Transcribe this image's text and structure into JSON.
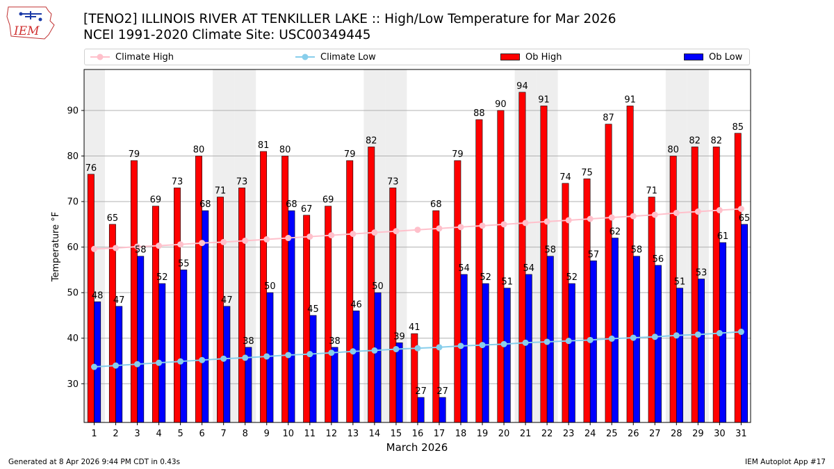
{
  "header": {
    "title_line1": "[TENO2] ILLINOIS RIVER  AT TENKILLER LAKE :: High/Low Temperature for Mar 2026",
    "title_line2": "NCEI 1991-2020 Climate Site: USC00349445"
  },
  "logo": {
    "text": "IEM"
  },
  "footer": {
    "left": "Generated at 8 Apr 2026 9:44 PM CDT in 0.43s",
    "right": "IEM Autoplot App #17"
  },
  "colors": {
    "ob_high": "#ff0000",
    "ob_low": "#0000ff",
    "climate_high": "#ffc0cb",
    "climate_low": "#87ceeb",
    "weekend_shade": "#eeeeee",
    "grid": "#b0b0b0"
  },
  "legend": [
    {
      "label": "Climate High",
      "kind": "line",
      "color": "#ffc0cb"
    },
    {
      "label": "Climate Low",
      "kind": "line",
      "color": "#87ceeb"
    },
    {
      "label": "Ob High",
      "kind": "box",
      "color": "#ff0000"
    },
    {
      "label": "Ob Low",
      "kind": "box",
      "color": "#0000ff"
    }
  ],
  "chart_data": {
    "type": "bar",
    "title": "[TENO2] ILLINOIS RIVER  AT TENKILLER LAKE :: High/Low Temperature for Mar 2026",
    "xlabel": "March 2026",
    "ylabel": "Temperature °F",
    "ylim": [
      21.5,
      99
    ],
    "yticks": [
      30,
      40,
      50,
      60,
      70,
      80,
      90
    ],
    "grid": "horizontal",
    "legend_position": "top",
    "categories": [
      "1",
      "2",
      "3",
      "4",
      "5",
      "6",
      "7",
      "8",
      "9",
      "10",
      "11",
      "12",
      "13",
      "14",
      "15",
      "16",
      "17",
      "18",
      "19",
      "20",
      "21",
      "22",
      "23",
      "24",
      "25",
      "26",
      "27",
      "28",
      "29",
      "30",
      "31"
    ],
    "weekend_days": [
      1,
      7,
      8,
      14,
      15,
      21,
      22,
      28,
      29
    ],
    "series": [
      {
        "name": "Ob High",
        "kind": "bar",
        "color": "#ff0000",
        "values": [
          76,
          65,
          79,
          69,
          73,
          80,
          71,
          73,
          81,
          80,
          67,
          69,
          79,
          82,
          73,
          41,
          68,
          79,
          88,
          90,
          94,
          91,
          74,
          75,
          87,
          91,
          71,
          80,
          82,
          82,
          85
        ],
        "labels": [
          "76",
          "65",
          "79",
          "69",
          "73",
          "80",
          "71",
          "73",
          "81",
          "80",
          "67",
          "69",
          "79",
          "82",
          "73",
          "41",
          "68",
          "79",
          "88",
          "90",
          "94",
          "91",
          "74",
          "75",
          "87",
          "91",
          "71",
          "80",
          "82",
          "82",
          "85"
        ]
      },
      {
        "name": "Ob Low",
        "kind": "bar",
        "color": "#0000ff",
        "values": [
          48,
          47,
          58,
          52,
          55,
          68,
          47,
          38,
          50,
          68,
          45,
          38,
          46,
          50,
          39,
          27,
          27,
          54,
          52,
          51,
          54,
          58,
          52,
          57,
          62,
          58,
          56,
          51,
          53,
          61,
          65
        ],
        "labels": [
          "48",
          "47",
          "58",
          "52",
          "55",
          "68",
          "47",
          "38",
          "50",
          "68",
          "45",
          "38",
          "46",
          "50",
          "39",
          "27",
          "27",
          "54",
          "52",
          "51",
          "54",
          "58",
          "52",
          "57",
          "62",
          "58",
          "56",
          "51",
          "53",
          "61",
          "65"
        ]
      },
      {
        "name": "Climate High",
        "kind": "line",
        "color": "#ffc0cb",
        "values": [
          59.6,
          59.8,
          60.1,
          60.3,
          60.6,
          60.9,
          61.1,
          61.4,
          61.7,
          62.0,
          62.3,
          62.6,
          62.9,
          63.2,
          63.5,
          63.8,
          64.1,
          64.4,
          64.7,
          65.0,
          65.3,
          65.6,
          65.9,
          66.2,
          66.5,
          66.8,
          67.1,
          67.5,
          67.8,
          68.1,
          68.4
        ]
      },
      {
        "name": "Climate Low",
        "kind": "line",
        "color": "#87ceeb",
        "values": [
          33.7,
          34.0,
          34.3,
          34.6,
          34.9,
          35.2,
          35.5,
          35.7,
          36.0,
          36.3,
          36.5,
          36.8,
          37.1,
          37.3,
          37.6,
          37.8,
          38.0,
          38.3,
          38.5,
          38.7,
          39.0,
          39.2,
          39.4,
          39.6,
          39.9,
          40.1,
          40.3,
          40.6,
          40.8,
          41.1,
          41.4
        ]
      }
    ]
  }
}
